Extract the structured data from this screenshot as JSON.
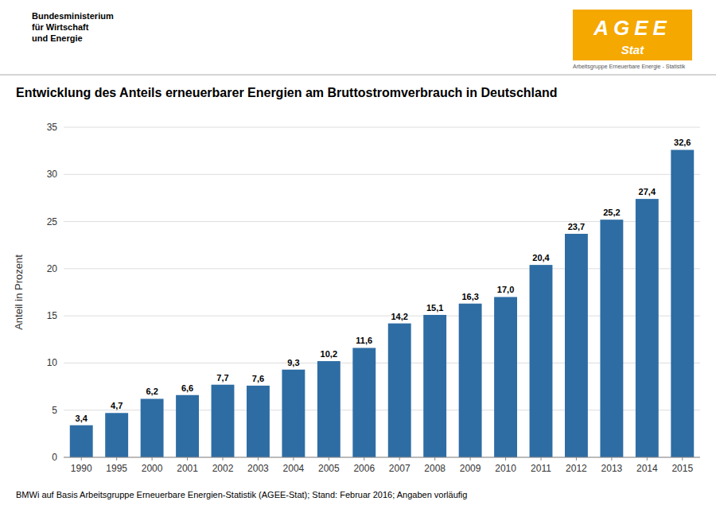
{
  "chart_data": {
    "type": "bar",
    "title": "Entwicklung des Anteils erneuerbarer Energien am Bruttostromverbrauch in Deutschland",
    "y_label": "Anteil in Prozent",
    "footer": "BMWi auf Basis Arbeitsgruppe Erneuerbare Energien-Statistik (AGEE-Stat); Stand: Februar 2016; Angaben vorläufig",
    "annotations": [
      "Bundesministerium",
      "für Wirtschaft",
      "und Energie",
      "AGEE",
      "Stat",
      "Arbeitsgruppe Erneuerbare Energie - Statistik"
    ],
    "categories": [
      "1990",
      "1995",
      "2000",
      "2001",
      "2002",
      "2003",
      "2004",
      "2005",
      "2006",
      "2007",
      "2008",
      "2009",
      "2010",
      "2011",
      "2012",
      "2013",
      "2014",
      "2015"
    ],
    "values": [
      3.4,
      4.7,
      6.2,
      6.6,
      7.7,
      7.6,
      9.3,
      10.2,
      11.6,
      14.2,
      15.1,
      16.3,
      17.0,
      20.4,
      23.7,
      25.2,
      27.4,
      32.6
    ],
    "value_labels": [
      "3,4",
      "4,7",
      "6,2",
      "6,6",
      "7,7",
      "7,6",
      "9,3",
      "10,2",
      "11,6",
      "14,2",
      "15,1",
      "16,3",
      "17,0",
      "20,4",
      "23,7",
      "25,2",
      "27,4",
      "32,6"
    ],
    "data_labels": true,
    "color": "#2E6DA4",
    "ylim": [
      0,
      35
    ],
    "yticks": [
      0,
      5,
      10,
      15,
      20,
      25,
      30,
      35
    ],
    "grid": true
  }
}
